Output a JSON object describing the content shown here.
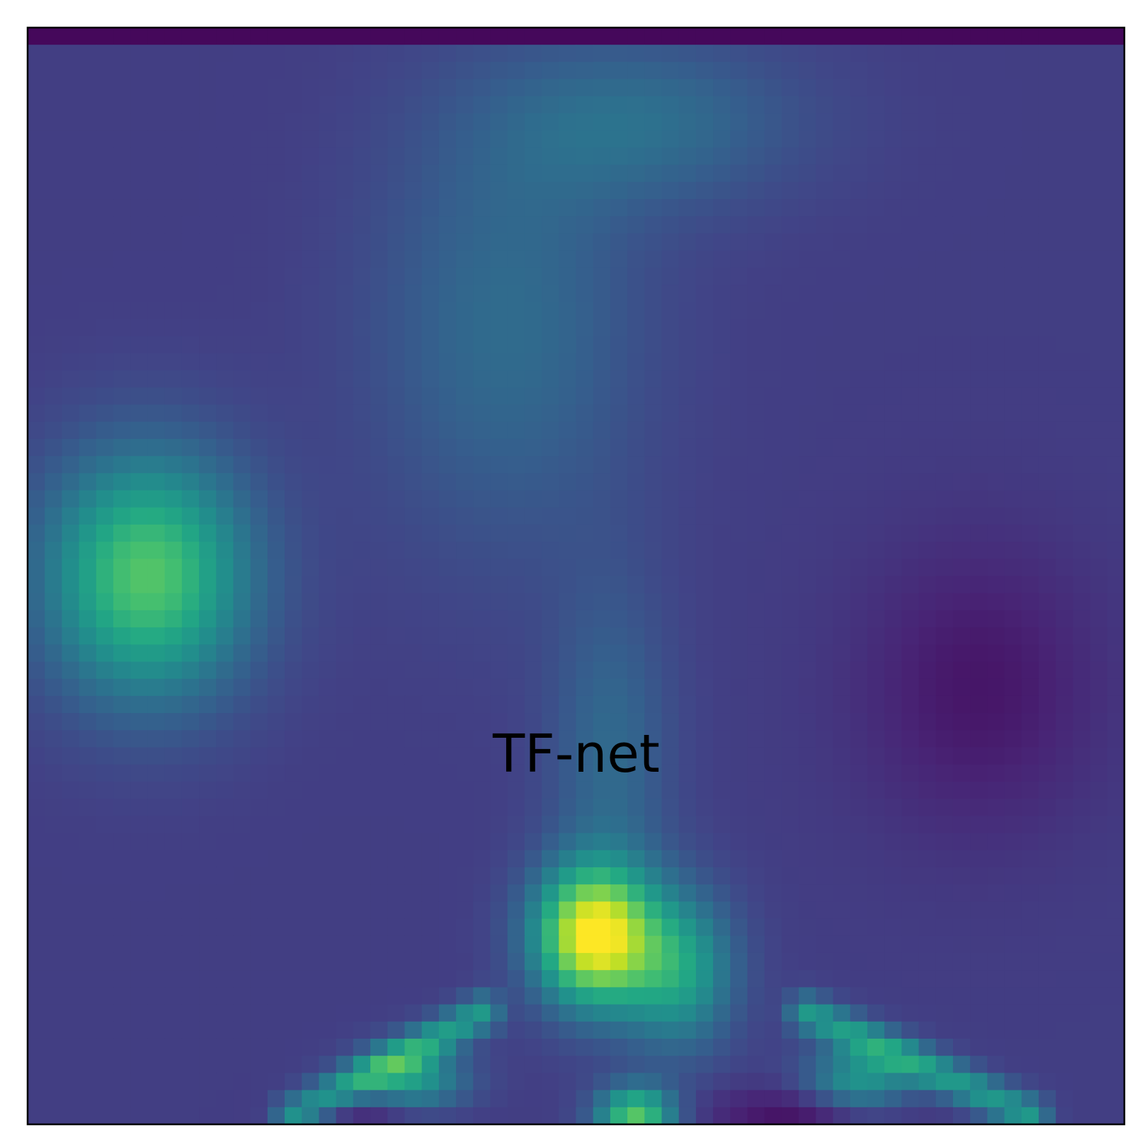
{
  "chart_data": {
    "type": "heatmap",
    "title": "",
    "annotation": "TF-net",
    "xlabel": "",
    "ylabel": "",
    "ticks": "none",
    "colormap": "viridis",
    "grid_shape": [
      64,
      64
    ],
    "background_level": 0.18,
    "top_edge_row_level": 0.02,
    "blobs": [
      {
        "cx": 6.5,
        "cy": 31.5,
        "sx": 4.2,
        "sy": 5.0,
        "amp": 0.55
      },
      {
        "cx": 32.5,
        "cy": 52.5,
        "sx": 2.4,
        "sy": 2.8,
        "amp": 0.8
      },
      {
        "cx": 37.5,
        "cy": 54.5,
        "sx": 2.3,
        "sy": 3.2,
        "amp": 0.38
      },
      {
        "cx": 27.5,
        "cy": 17.0,
        "sx": 5.5,
        "sy": 9.0,
        "amp": 0.17
      },
      {
        "cx": 35.5,
        "cy": 5.0,
        "sx": 6.5,
        "sy": 3.5,
        "amp": 0.17
      },
      {
        "cx": 33.5,
        "cy": 42.0,
        "sx": 2.5,
        "sy": 7.0,
        "amp": 0.16
      },
      {
        "cx": 35.0,
        "cy": 63.0,
        "sx": 1.6,
        "sy": 1.2,
        "amp": 0.55
      },
      {
        "cx": 22.0,
        "cy": 61.0,
        "sx": 2.2,
        "sy": 1.4,
        "amp": 0.35
      },
      {
        "cx": 48.0,
        "cy": 61.0,
        "sx": 2.2,
        "sy": 1.4,
        "amp": 0.35
      },
      {
        "cx": 55.0,
        "cy": 38.0,
        "sx": 5.0,
        "sy": 6.0,
        "amp": -0.12
      },
      {
        "cx": 45.0,
        "cy": 63.0,
        "sx": 4.0,
        "sy": 1.2,
        "amp": -0.15
      },
      {
        "cx": 20.0,
        "cy": 63.0,
        "sx": 3.0,
        "sy": 1.0,
        "amp": -0.12
      }
    ],
    "ridges": [
      {
        "x0": 15.0,
        "y0": 63.0,
        "x1": 26.0,
        "y1": 57.0,
        "width": 0.8,
        "amp": 0.35
      },
      {
        "x0": 45.0,
        "y0": 57.0,
        "x1": 58.0,
        "y1": 63.0,
        "width": 0.8,
        "amp": 0.35
      }
    ]
  }
}
